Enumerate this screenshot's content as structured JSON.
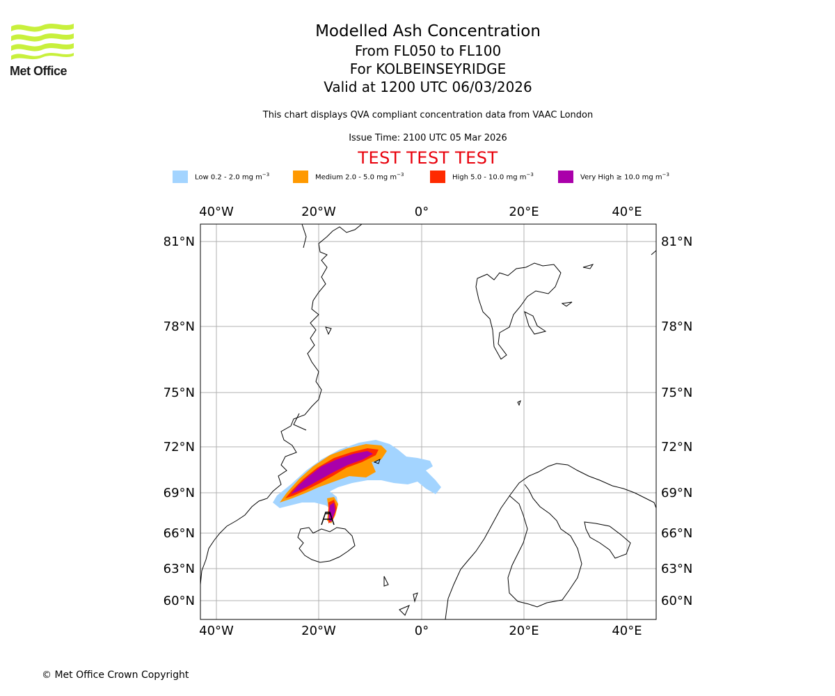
{
  "header": {
    "org_name": "Met Office",
    "title": "Modelled Ash Concentration",
    "levels": "From FL050 to FL100",
    "location": "For KOLBEINSEYRIDGE",
    "valid": "Valid at 1200 UTC 06/03/2026",
    "description": "This chart displays QVA compliant concentration data from VAAC London",
    "issue_time": "Issue Time: 2100 UTC 05 Mar 2026",
    "test_banner": "TEST TEST TEST"
  },
  "legend": [
    {
      "label": "Low 0.2 - 2.0 mg m",
      "unit_exp": "−3",
      "color": "#a3d4ff"
    },
    {
      "label": "Medium 2.0 - 5.0 mg m",
      "unit_exp": "−3",
      "color": "#ff9900"
    },
    {
      "label": "High 5.0 - 10.0 mg m",
      "unit_exp": "−3",
      "color": "#ff2a00"
    },
    {
      "label": "Very High  ≥  10.0 mg m",
      "unit_exp": "−3",
      "color": "#aa00aa"
    }
  ],
  "axes": {
    "lon_labels": [
      "40°W",
      "20°W",
      "0°",
      "20°E",
      "40°E"
    ],
    "lat_labels": [
      "81°N",
      "78°N",
      "75°N",
      "72°N",
      "69°N",
      "66°N",
      "63°N",
      "60°N"
    ]
  },
  "map": {
    "volcano_symbol": "volcano-marker",
    "colors": {
      "coast": "#000000",
      "grid": "#b0b0b0"
    }
  },
  "footer": {
    "copyright": "© Met Office Crown Copyright"
  }
}
